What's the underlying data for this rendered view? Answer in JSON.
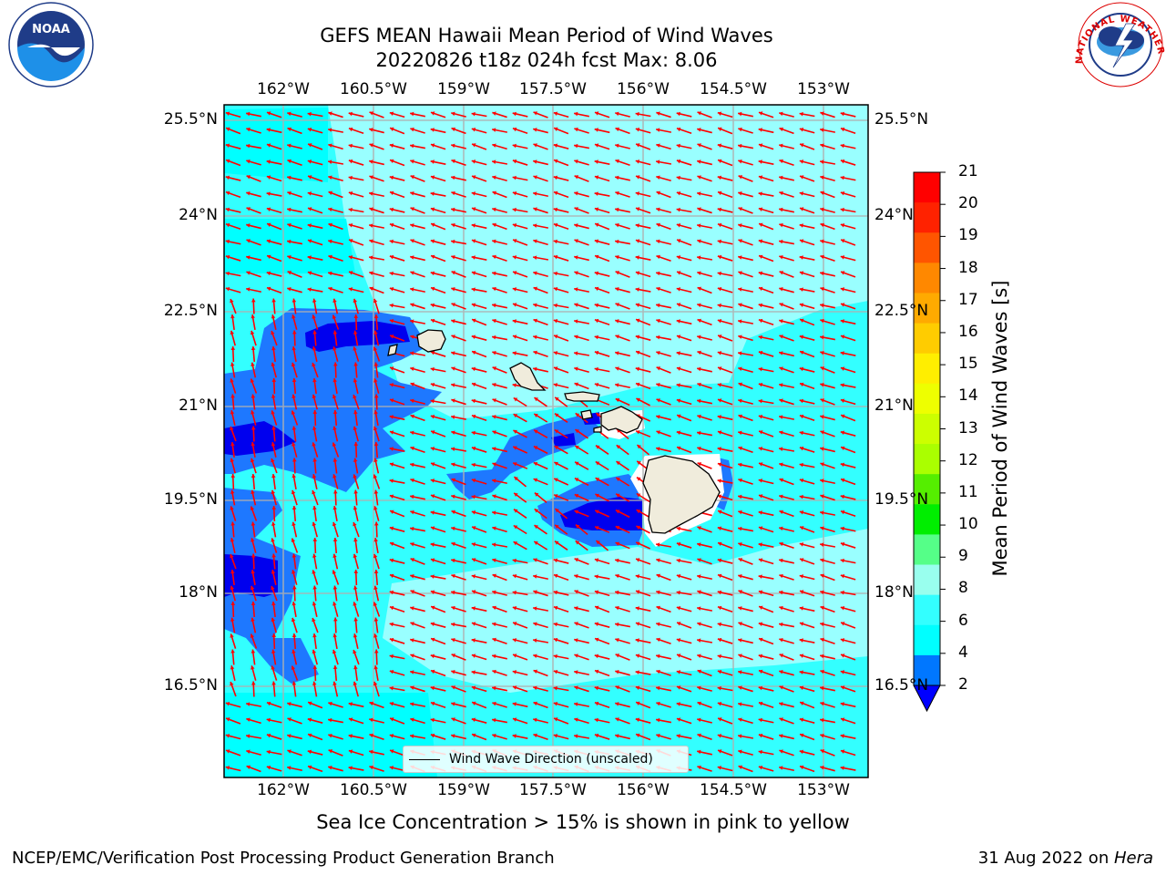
{
  "header": {
    "title_line1": "GEFS MEAN Hawaii Mean Period of Wind Waves",
    "title_line2": "20220826 t18z 024h fcst   Max: 8.06"
  },
  "map": {
    "lon_labels": [
      "162°W",
      "160.5°W",
      "159°W",
      "157.5°W",
      "156°W",
      "154.5°W",
      "153°W"
    ],
    "lat_labels": [
      "25.5°N",
      "24°N",
      "22.5°N",
      "21°N",
      "19.5°N",
      "18°N",
      "16.5°N"
    ],
    "legend_label": "Wind Wave Direction (unscaled)",
    "vector_color": "#ff0000",
    "land_color": "#f0ecdc",
    "ocean_base_color": "#33ffff"
  },
  "colorbar": {
    "label": "Mean Period of Wind Waves [s]",
    "ticks": [
      "21",
      "20",
      "19",
      "18",
      "17",
      "16",
      "15",
      "14",
      "13",
      "12",
      "11",
      "10",
      "9",
      "8",
      "6",
      "4",
      "2"
    ],
    "colors": [
      "#ff0000",
      "#ff2200",
      "#ff5500",
      "#ff8800",
      "#ffaa00",
      "#ffcc00",
      "#ffee00",
      "#eeff00",
      "#ccff00",
      "#aaff00",
      "#55ee00",
      "#00ee00",
      "#55ff88",
      "#99ffee",
      "#33ffff",
      "#00ffff",
      "#0077ff"
    ],
    "under_color": "#0000ff"
  },
  "footer": {
    "subtitle": "Sea Ice Concentration > 15% is shown in pink to yellow",
    "credit": "NCEP/EMC/Verification Post Processing Product Generation Branch",
    "date": "31 Aug 2022 on ",
    "machine": "Hera"
  },
  "logos": {
    "left_text": "NOAA",
    "right_text": "NATIONAL WEATHER SERVICE"
  }
}
